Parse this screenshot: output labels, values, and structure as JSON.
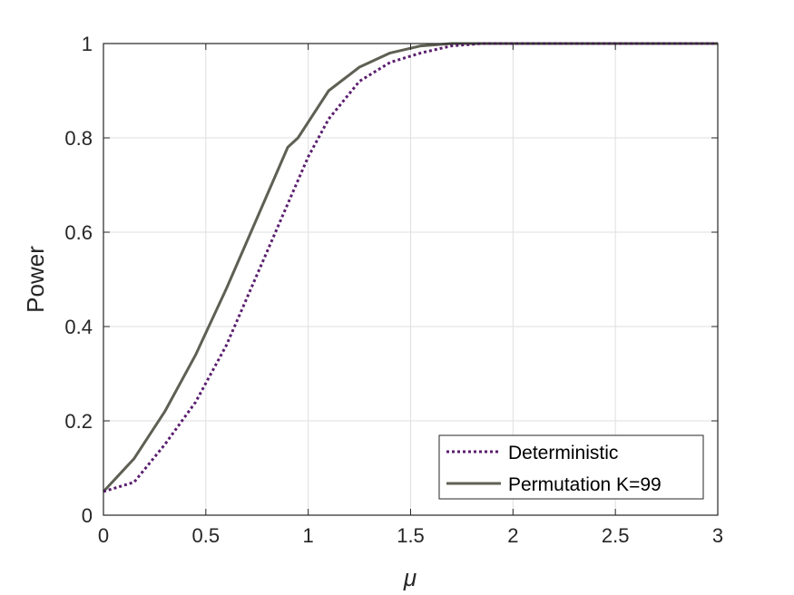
{
  "chart_data": {
    "type": "line",
    "title": "",
    "xlabel": "μ",
    "ylabel": "Power",
    "xlim": [
      0,
      3
    ],
    "ylim": [
      0,
      1
    ],
    "xticks": [
      0,
      0.5,
      1,
      1.5,
      2,
      2.5,
      3
    ],
    "xtick_labels": [
      "0",
      "0.5",
      "1",
      "1.5",
      "2",
      "2.5",
      "3"
    ],
    "yticks": [
      0,
      0.2,
      0.4,
      0.6,
      0.8,
      1
    ],
    "ytick_labels": [
      "0",
      "0.2",
      "0.4",
      "0.6",
      "0.8",
      "1"
    ],
    "grid": true,
    "legend_position": "bottom-right",
    "series": [
      {
        "name": "Deterministic",
        "style": "dotted",
        "color": "#5a1e6e",
        "x": [
          0,
          0.15,
          0.3,
          0.45,
          0.6,
          0.75,
          0.9,
          1.0,
          1.1,
          1.25,
          1.4,
          1.55,
          1.7,
          1.85,
          2.0,
          2.5,
          3.0
        ],
        "y": [
          0.05,
          0.07,
          0.15,
          0.24,
          0.36,
          0.51,
          0.66,
          0.76,
          0.84,
          0.92,
          0.96,
          0.98,
          0.995,
          1.0,
          1.0,
          1.0,
          1.0
        ]
      },
      {
        "name": "Permutation K=99",
        "style": "solid",
        "color": "#5f5f54",
        "x": [
          0,
          0.15,
          0.3,
          0.45,
          0.6,
          0.75,
          0.9,
          0.95,
          1.1,
          1.25,
          1.4,
          1.55,
          1.7,
          1.85,
          2.0,
          2.5,
          3.0
        ],
        "y": [
          0.05,
          0.12,
          0.22,
          0.34,
          0.48,
          0.63,
          0.78,
          0.8,
          0.9,
          0.95,
          0.98,
          0.995,
          1.0,
          1.0,
          1.0,
          1.0,
          1.0
        ]
      }
    ]
  }
}
